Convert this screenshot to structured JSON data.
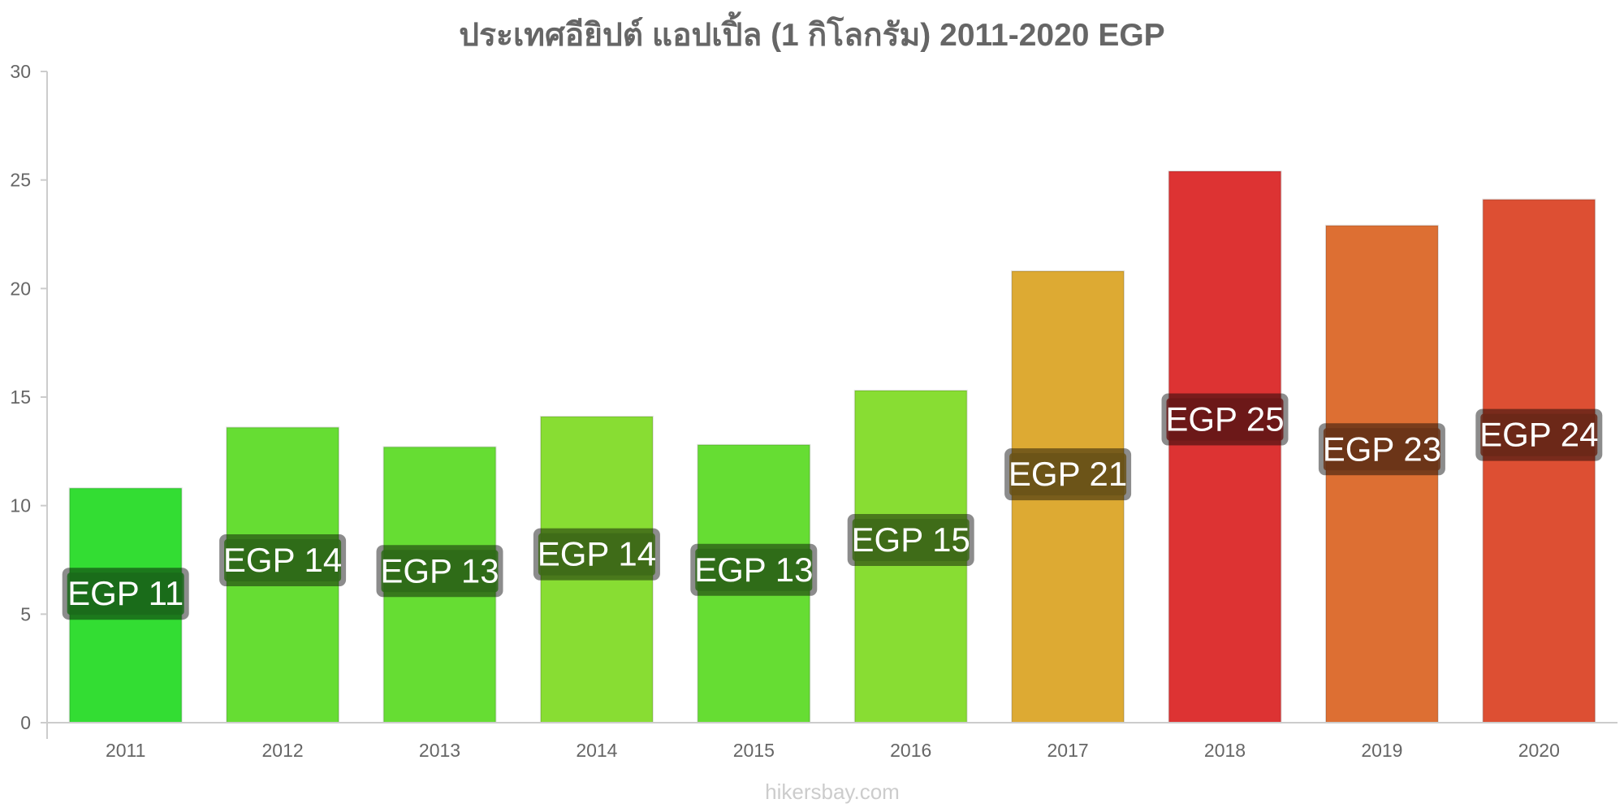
{
  "chart_data": {
    "type": "bar",
    "title": "ประเทศอียิปต์ แอปเปิ้ล (1 กิโลกรัม) 2011-2020 EGP",
    "xlabel": "",
    "ylabel": "",
    "ylim": [
      0,
      30
    ],
    "y_ticks": [
      "0",
      "5",
      "10",
      "15",
      "20",
      "25",
      "30"
    ],
    "categories": [
      "2011",
      "2012",
      "2013",
      "2014",
      "2015",
      "2016",
      "2017",
      "2018",
      "2019",
      "2020"
    ],
    "values": [
      10.8,
      13.6,
      12.7,
      14.1,
      12.8,
      15.3,
      20.8,
      25.4,
      22.9,
      24.1
    ],
    "data_labels": [
      "EGP 11",
      "EGP 14",
      "EGP 13",
      "EGP 14",
      "EGP 13",
      "EGP 15",
      "EGP 21",
      "EGP 25",
      "EGP 23",
      "EGP 24"
    ],
    "bar_colors": [
      "#33dd33",
      "#66dd33",
      "#66dd33",
      "#88dd33",
      "#66dd33",
      "#88dd33",
      "#ddaa33",
      "#dd3333",
      "#dd6f33",
      "#dd4f33"
    ],
    "label_bg_colors": [
      "#1a6a1a",
      "#2e6a18",
      "#2e6a18",
      "#3d6a18",
      "#2e6a18",
      "#3d6a18",
      "#6a5218",
      "#6a1818",
      "#6a3418",
      "#6a2818"
    ],
    "grid": false,
    "legend": "none",
    "watermark": "hikersbay.com"
  }
}
